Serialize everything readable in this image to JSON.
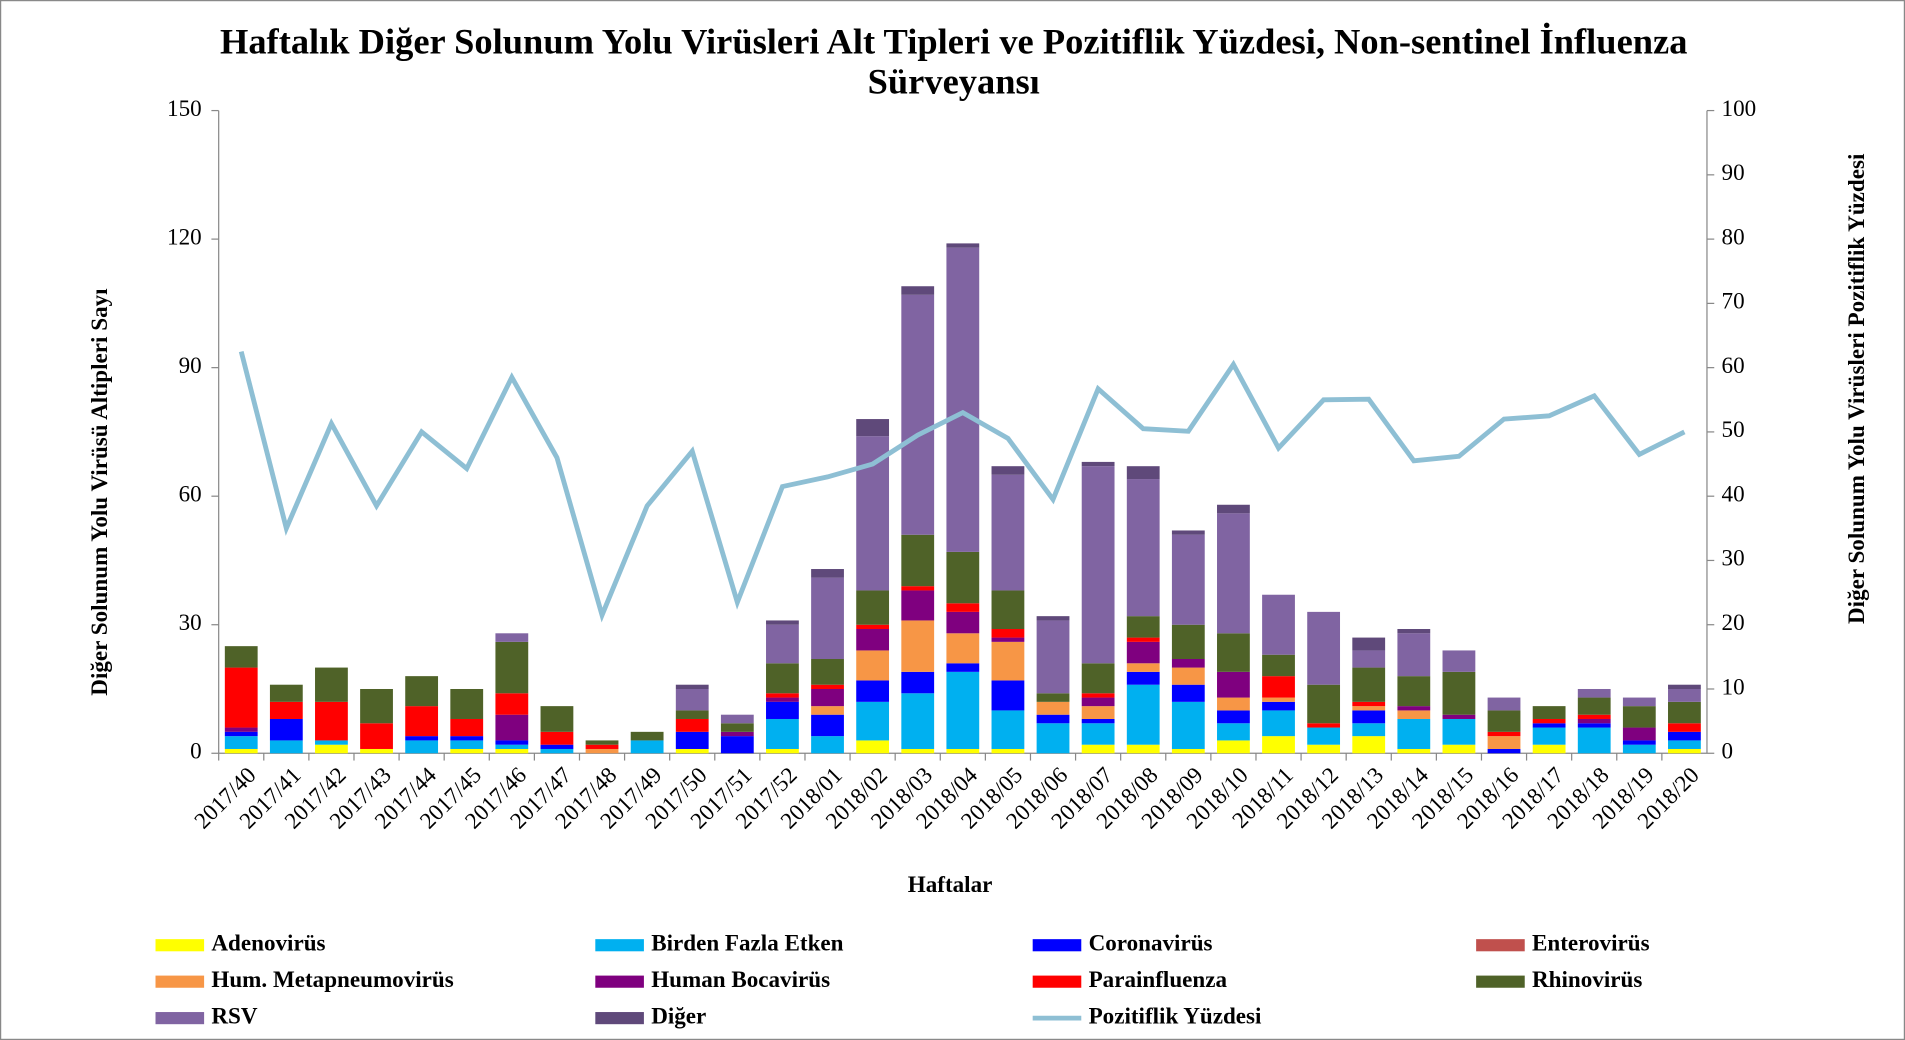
{
  "chart_data": {
    "type": "bar",
    "title": "Haftalık Diğer Solunum Yolu Virüsleri Alt Tipleri ve Pozitiflik Yüzdesi, Non-sentinel İnfluenza Sürveyansı",
    "x_label": "Haftalar",
    "y_label": "Diğer Solunum Yolu Virüsü Altipleri Sayı",
    "y2_label": "Diğer Solunum Yolu Virüsleri Pozitiflik Yüzdesi",
    "stacked": true,
    "categories": [
      "2017/40",
      "2017/41",
      "2017/42",
      "2017/43",
      "2017/44",
      "2017/45",
      "2017/46",
      "2017/47",
      "2017/48",
      "2017/49",
      "2017/50",
      "2017/51",
      "2017/52",
      "2018/01",
      "2018/02",
      "2018/03",
      "2018/04",
      "2018/05",
      "2018/06",
      "2018/07",
      "2018/08",
      "2018/09",
      "2018/10",
      "2018/11",
      "2018/12",
      "2018/13",
      "2018/14",
      "2018/15",
      "2018/16",
      "2018/17",
      "2018/18",
      "2018/19",
      "2018/20"
    ],
    "ylim": [
      0,
      150
    ],
    "yticks": [
      0,
      30,
      60,
      90,
      120,
      150
    ],
    "y2lim": [
      0,
      100
    ],
    "y2ticks": [
      0,
      10,
      20,
      30,
      40,
      50,
      60,
      70,
      80,
      90,
      100
    ],
    "series": [
      {
        "name": "Adenovirüs",
        "color": "#ffff00",
        "values": [
          1,
          0,
          2,
          1,
          0,
          1,
          1,
          0,
          0,
          0,
          1,
          0,
          1,
          0,
          3,
          1,
          1,
          1,
          0,
          2,
          2,
          1,
          3,
          4,
          2,
          4,
          1,
          2,
          0,
          2,
          0,
          0,
          1
        ]
      },
      {
        "name": "Birden Fazla Etken",
        "color": "#00b0f0",
        "values": [
          3,
          3,
          1,
          0,
          3,
          2,
          1,
          1,
          0,
          3,
          0,
          0,
          7,
          4,
          9,
          13,
          18,
          9,
          7,
          5,
          14,
          11,
          4,
          6,
          4,
          3,
          7,
          6,
          0,
          4,
          6,
          2,
          2
        ]
      },
      {
        "name": "Coronavirüs",
        "color": "#0000ff",
        "values": [
          1,
          5,
          0,
          0,
          1,
          1,
          1,
          1,
          0,
          0,
          4,
          4,
          4,
          5,
          5,
          5,
          2,
          7,
          2,
          1,
          3,
          4,
          3,
          2,
          0,
          3,
          0,
          0,
          1,
          1,
          1,
          1,
          2
        ]
      },
      {
        "name": "Enterovirüs",
        "color": "#c0504d",
        "values": [
          0,
          0,
          0,
          0,
          0,
          0,
          0,
          0,
          0,
          0,
          0,
          0,
          0,
          0,
          0,
          0,
          0,
          0,
          0,
          0,
          0,
          0,
          0,
          0,
          0,
          0,
          0,
          0,
          0,
          0,
          0,
          0,
          0
        ]
      },
      {
        "name": "Hum. Metapneumovirüs",
        "color": "#f79646",
        "values": [
          0,
          0,
          0,
          0,
          0,
          0,
          0,
          0,
          1,
          0,
          0,
          0,
          0,
          2,
          7,
          12,
          7,
          9,
          3,
          3,
          2,
          4,
          3,
          1,
          0,
          1,
          2,
          0,
          3,
          0,
          0,
          0,
          0
        ]
      },
      {
        "name": "Human Bocavirüs",
        "color": "#7f007f",
        "values": [
          1,
          0,
          0,
          0,
          0,
          0,
          6,
          0,
          0,
          0,
          0,
          1,
          1,
          4,
          5,
          7,
          5,
          1,
          0,
          2,
          5,
          2,
          6,
          0,
          0,
          0,
          1,
          1,
          0,
          0,
          1,
          3,
          0
        ]
      },
      {
        "name": "Parainfluenza",
        "color": "#ff0000",
        "values": [
          14,
          4,
          9,
          6,
          7,
          4,
          5,
          3,
          1,
          0,
          3,
          0,
          1,
          1,
          1,
          1,
          2,
          2,
          0,
          1,
          1,
          0,
          0,
          5,
          1,
          1,
          0,
          0,
          1,
          1,
          1,
          0,
          2
        ]
      },
      {
        "name": "Rhinovirüs",
        "color": "#4f6228",
        "values": [
          5,
          4,
          8,
          8,
          7,
          7,
          12,
          6,
          1,
          2,
          2,
          2,
          7,
          6,
          8,
          12,
          12,
          9,
          2,
          7,
          5,
          8,
          9,
          5,
          9,
          8,
          7,
          10,
          5,
          3,
          4,
          5,
          5
        ]
      },
      {
        "name": "RSV",
        "color": "#8064a2",
        "values": [
          0,
          0,
          0,
          0,
          0,
          0,
          2,
          0,
          0,
          0,
          5,
          2,
          9,
          19,
          36,
          56,
          71,
          27,
          17,
          46,
          32,
          21,
          28,
          14,
          17,
          4,
          10,
          5,
          3,
          0,
          2,
          2,
          3
        ]
      },
      {
        "name": "Diğer",
        "color": "#5f497a",
        "values": [
          0,
          0,
          0,
          0,
          0,
          0,
          0,
          0,
          0,
          0,
          1,
          0,
          1,
          2,
          4,
          2,
          1,
          2,
          1,
          1,
          3,
          1,
          2,
          0,
          0,
          3,
          1,
          0,
          0,
          0,
          0,
          0,
          1
        ]
      },
      {
        "name": "Pozitiflik Yüzdesi",
        "type": "line",
        "axis": "y2",
        "color": "#8ebfd4",
        "values": [
          62.5,
          35,
          51.3,
          38.5,
          50,
          44.3,
          58.5,
          46,
          21.5,
          38.5,
          47,
          23.5,
          41.5,
          43,
          45,
          49.5,
          53,
          49,
          39.5,
          56.7,
          50.5,
          50.1,
          60.5,
          47.5,
          55,
          55.1,
          45.5,
          46.2,
          52,
          52.5,
          55.6,
          46.5,
          50
        ]
      }
    ]
  }
}
